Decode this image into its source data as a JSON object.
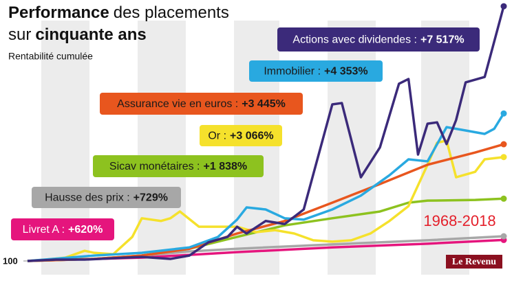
{
  "chart_data": {
    "type": "line",
    "title_lines": [
      [
        {
          "text": "Performance",
          "bold": true
        },
        {
          "text": "des placements",
          "bold": false
        }
      ],
      [
        {
          "text": "sur",
          "bold": false
        },
        {
          "text": "cinquante ans",
          "bold": true
        }
      ]
    ],
    "subtitle": "Rentabilité cumulée",
    "annotation": "1968-2018",
    "logo": "Le Revenu",
    "xlim": [
      1968,
      2018
    ],
    "ylim": [
      100,
      7700
    ],
    "yticks": [
      100
    ],
    "series": [
      {
        "name": "Actions avec dividendes :",
        "gain": "+7 517%",
        "color": "#3b2a7a",
        "text_color": "#ffffff",
        "x": [
          1968,
          1971,
          1974,
          1977,
          1980,
          1983,
          1985,
          1987,
          1989,
          1990,
          1991,
          1993,
          1995,
          1997,
          2000,
          2001,
          2003,
          2005,
          2007,
          2008,
          2009,
          2010,
          2011,
          2012,
          2013,
          2014,
          2016,
          2018
        ],
        "values": [
          100,
          140,
          140,
          180,
          220,
          160,
          260,
          650,
          810,
          1110,
          910,
          1280,
          1190,
          1620,
          4720,
          4760,
          2570,
          3450,
          5330,
          5470,
          3240,
          4150,
          4190,
          3550,
          4260,
          5370,
          5530,
          7617
        ]
      },
      {
        "name": "Immobilier :",
        "gain": "+4 353%",
        "color": "#29a9e0",
        "text_color": "#1a1a1a",
        "x": [
          1968,
          1975,
          1980,
          1985,
          1988,
          1990,
          1991,
          1993,
          1995,
          1997,
          2000,
          2003,
          2006,
          2008,
          2010,
          2012,
          2014,
          2016,
          2017,
          2018
        ],
        "values": [
          100,
          260,
          340,
          500,
          810,
          1320,
          1680,
          1620,
          1360,
          1320,
          1620,
          2030,
          2630,
          3100,
          3040,
          4050,
          3950,
          3850,
          4000,
          4453
        ]
      },
      {
        "name": "Assurance vie en euros :",
        "gain": "+3 445%",
        "color": "#e8561e",
        "text_color": "#1a1a1a",
        "x": [
          1968,
          1975,
          1980,
          1985,
          1990,
          1995,
          2000,
          2005,
          2010,
          2015,
          2018
        ],
        "values": [
          100,
          160,
          260,
          460,
          910,
          1280,
          1820,
          2370,
          2940,
          3300,
          3545
        ]
      },
      {
        "name": "Or :",
        "gain": "+3 066%",
        "color": "#f5e12c",
        "text_color": "#1a1a1a",
        "x": [
          1968,
          1970,
          1972,
          1974,
          1975,
          1977,
          1979,
          1980,
          1982,
          1983,
          1984,
          1986,
          1988,
          1990,
          1992,
          1994,
          1996,
          1998,
          2000,
          2002,
          2004,
          2006,
          2008,
          2010,
          2011,
          2012,
          2013,
          2015,
          2016,
          2018
        ],
        "values": [
          100,
          140,
          200,
          400,
          340,
          300,
          810,
          1360,
          1280,
          1360,
          1560,
          1110,
          1110,
          1110,
          950,
          1010,
          910,
          710,
          670,
          710,
          910,
          1280,
          1720,
          2940,
          3590,
          3650,
          2570,
          2730,
          3100,
          3166
        ]
      },
      {
        "name": "Sicav monétaires :",
        "gain": "+1 838%",
        "color": "#8dc21f",
        "text_color": "#1a1a1a",
        "x": [
          1968,
          1975,
          1980,
          1985,
          1990,
          1995,
          2000,
          2005,
          2008,
          2010,
          2015,
          2018
        ],
        "values": [
          100,
          160,
          260,
          460,
          810,
          1150,
          1360,
          1560,
          1820,
          1880,
          1900,
          1938
        ]
      },
      {
        "name": "Hausse des prix :",
        "gain": "+729%",
        "color": "#a7a7a7",
        "text_color": "#1a1a1a",
        "x": [
          1968,
          1975,
          1980,
          1985,
          1990,
          2000,
          2010,
          2018
        ],
        "values": [
          100,
          160,
          260,
          380,
          460,
          590,
          710,
          829
        ]
      },
      {
        "name": "Livret A :",
        "gain": "+620%",
        "color": "#e5157d",
        "text_color": "#ffffff",
        "x": [
          1968,
          1980,
          1990,
          2000,
          2010,
          2018
        ],
        "values": [
          100,
          200,
          360,
          500,
          610,
          720
        ]
      }
    ]
  }
}
